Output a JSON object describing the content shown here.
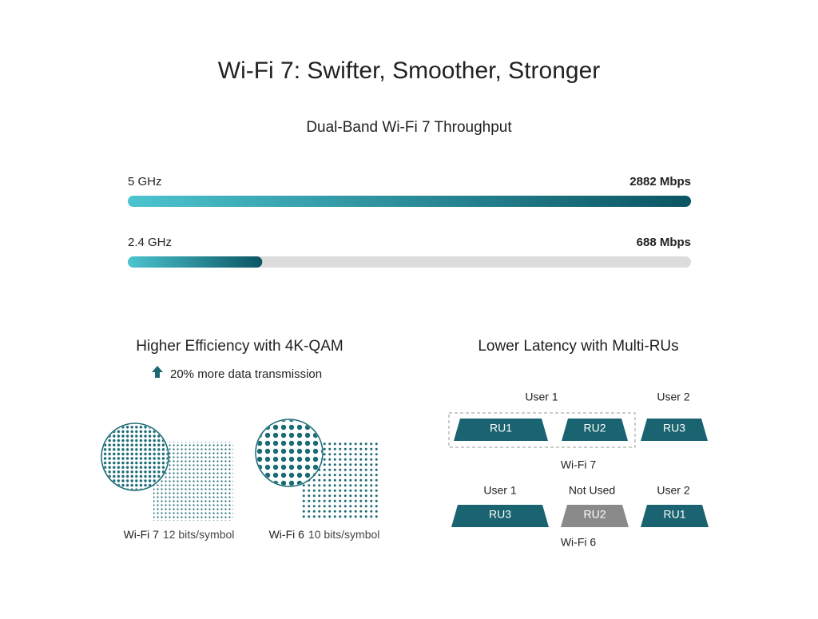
{
  "header": {
    "title": "Wi-Fi 7: Swifter, Smoother, Stronger"
  },
  "throughput": {
    "title": "Dual-Band Wi-Fi 7 Throughput",
    "bars": [
      {
        "band": "5 GHz",
        "value": 2882,
        "value_label": "2882 Mbps"
      },
      {
        "band": "2.4 GHz",
        "value": 688,
        "value_label": "688 Mbps"
      }
    ]
  },
  "qam": {
    "title": "Higher Efficiency with 4K-QAM",
    "note": "20% more data transmission",
    "panels": [
      {
        "name": "Wi-Fi 7",
        "detail": "12 bits/symbol"
      },
      {
        "name": "Wi-Fi 6",
        "detail": "10 bits/symbol"
      }
    ]
  },
  "multi_ru": {
    "title": "Lower Latency with Multi-RUs",
    "rows": [
      {
        "name": "Wi-Fi 7",
        "users": [
          "User 1",
          "User 2"
        ],
        "units": [
          "RU1",
          "RU2",
          "RU3"
        ]
      },
      {
        "name": "Wi-Fi 6",
        "users": [
          "User 1",
          "Not Used",
          "User 2"
        ],
        "units": [
          "RU3",
          "RU2",
          "RU1"
        ]
      }
    ]
  }
}
